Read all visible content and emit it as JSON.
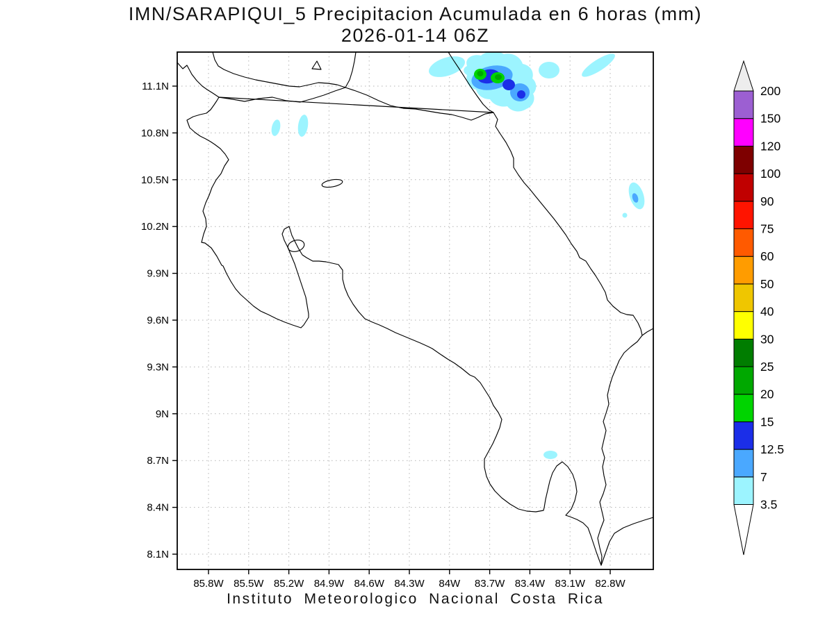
{
  "title": {
    "line1": "IMN/SARAPIQUI_5 Precipitacion Acumulada en 6 horas (mm)",
    "line2": "2026-01-14 06Z"
  },
  "caption": "Instituto Meteorologico Nacional Costa Rica",
  "chart_data": {
    "type": "heatmap",
    "title": "IMN/SARAPIQUI_5 Precipitacion Acumulada en 6 horas (mm)",
    "subtitle": "2026-01-14 06Z",
    "variable": "Precipitacion Acumulada en 6 horas",
    "units": "mm",
    "x_axis": {
      "label": "longitude",
      "ticks": [
        "85.8W",
        "85.5W",
        "85.2W",
        "84.9W",
        "84.6W",
        "84.3W",
        "84W",
        "83.7W",
        "83.4W",
        "83.1W",
        "82.8W"
      ]
    },
    "y_axis": {
      "label": "latitude",
      "ticks": [
        "11.1N",
        "10.8N",
        "10.5N",
        "10.2N",
        "9.9N",
        "9.6N",
        "9.3N",
        "9N",
        "8.7N",
        "8.4N",
        "8.1N"
      ]
    },
    "grid": "dotted",
    "legend_position": "right-colorbar",
    "colorbar": {
      "levels": [
        3.5,
        7,
        12.5,
        15,
        20,
        25,
        30,
        40,
        50,
        60,
        75,
        90,
        100,
        120,
        150,
        200
      ],
      "colors": [
        "#9cf4ff",
        "#4aa8ff",
        "#1b2ee8",
        "#00d400",
        "#00a800",
        "#007d00",
        "#ffff00",
        "#efc600",
        "#ff9c00",
        "#ff5a00",
        "#ff1400",
        "#c00000",
        "#7e0000",
        "#ff00ff",
        "#9c5fd2"
      ],
      "under_color": "#ffffff",
      "over_color": "#ededed"
    },
    "precipitation_features": [
      {
        "location": "near 83.7W 11.15N (Caribbean side at Nicaragua border)",
        "max_bin_mm": "20-25",
        "detail": "largest cluster: cyan/blue shield with two bright-green cores and small dark-blue maxima"
      },
      {
        "location": "near 84.0W 11.22N",
        "max_bin_mm": "3.5-7"
      },
      {
        "location": "near 83.3W 11.2N",
        "max_bin_mm": "3.5-7"
      },
      {
        "location": "near 82.9W 11.22N (offshore streak)",
        "max_bin_mm": "3.5-7"
      },
      {
        "location": "near 85.3W 10.84N and 85.1W 10.85N",
        "max_bin_mm": "3.5-7"
      },
      {
        "location": "near 82.6W 10.4N (offshore Caribbean)",
        "max_bin_mm": "7-12.5"
      },
      {
        "location": "near 83.25W 8.74N (Golfo Dulce area)",
        "max_bin_mm": "3.5-7"
      }
    ]
  }
}
